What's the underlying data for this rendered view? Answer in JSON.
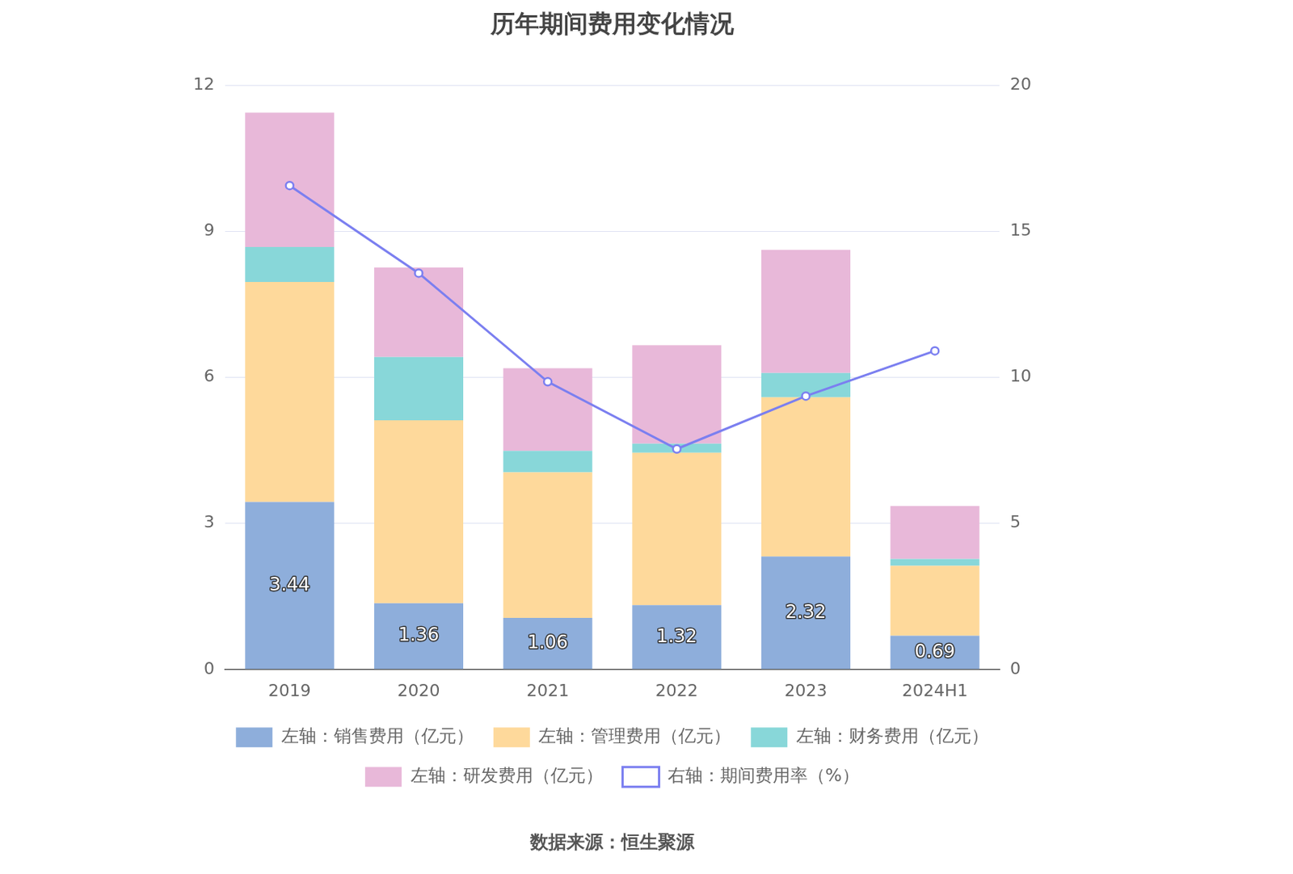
{
  "chart_data": {
    "type": "bar",
    "title": "历年期间费用变化情况",
    "source": "数据来源：恒生聚源",
    "categories": [
      "2019",
      "2020",
      "2021",
      "2022",
      "2023",
      "2024H1"
    ],
    "series": [
      {
        "name": "左轴：销售费用（亿元）",
        "color": "#8eaedb",
        "values": [
          3.44,
          1.36,
          1.06,
          1.32,
          2.32,
          0.69
        ],
        "data_labels": true
      },
      {
        "name": "左轴：管理费用（亿元）",
        "color": "#fed99b",
        "values": [
          4.52,
          3.76,
          2.99,
          3.13,
          3.27,
          1.44
        ]
      },
      {
        "name": "左轴：财务费用（亿元）",
        "color": "#88d7d9",
        "values": [
          0.72,
          1.3,
          0.44,
          0.19,
          0.5,
          0.14
        ]
      },
      {
        "name": "左轴：研发费用（亿元）",
        "color": "#e8b8d9",
        "values": [
          2.76,
          1.84,
          1.7,
          2.02,
          2.53,
          1.09
        ]
      },
      {
        "name": "右轴：期间费用率（%）",
        "type": "line",
        "axis": "y2",
        "color": "#7b7ff0",
        "marker": "circle",
        "values": [
          16.57,
          13.57,
          9.85,
          7.55,
          9.36,
          10.91
        ]
      }
    ],
    "stacked": true,
    "ylim": [
      0,
      12
    ],
    "yticks": [
      0,
      3,
      6,
      9,
      12
    ],
    "y2lim": [
      0,
      20
    ],
    "y2ticks": [
      0,
      5,
      10,
      15,
      20
    ],
    "grid": true,
    "legend": "bottom"
  }
}
